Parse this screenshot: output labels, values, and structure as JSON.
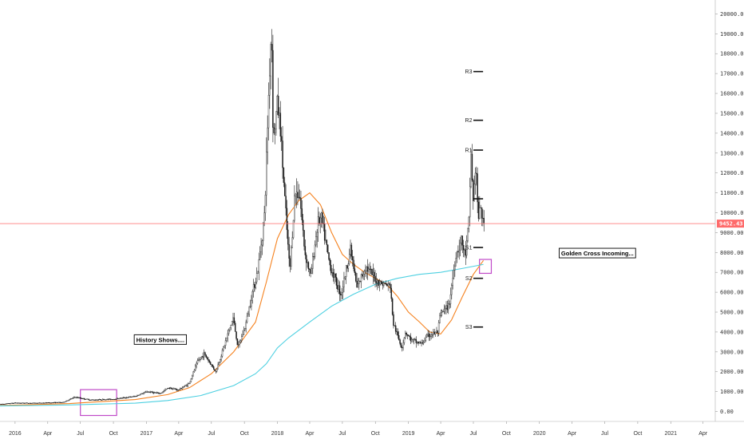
{
  "chart_data": {
    "type": "candlestick",
    "y_axis": {
      "ticks": [
        "0.00",
        "1000.00",
        "2000.00",
        "3000.00",
        "4000.00",
        "5000.00",
        "6000.00",
        "7000.00",
        "8000.00",
        "9000.00",
        "10000.00",
        "11000.00",
        "12000.00",
        "13000.00",
        "14000.00",
        "15000.00",
        "16000.00",
        "17000.00",
        "18000.00",
        "19000.00",
        "20000.00"
      ],
      "range": [
        -500,
        20700
      ],
      "position": "right"
    },
    "x_axis": {
      "ticks": [
        {
          "label": "2016",
          "date": "2016-01-01"
        },
        {
          "label": "Apr",
          "date": "2016-04-01"
        },
        {
          "label": "Jul",
          "date": "2016-07-01"
        },
        {
          "label": "Oct",
          "date": "2016-10-01"
        },
        {
          "label": "2017",
          "date": "2017-01-01"
        },
        {
          "label": "Apr",
          "date": "2017-04-01"
        },
        {
          "label": "Jul",
          "date": "2017-07-01"
        },
        {
          "label": "Oct",
          "date": "2017-10-01"
        },
        {
          "label": "2018",
          "date": "2018-01-01"
        },
        {
          "label": "Apr",
          "date": "2018-04-01"
        },
        {
          "label": "Jul",
          "date": "2018-07-01"
        },
        {
          "label": "Oct",
          "date": "2018-10-01"
        },
        {
          "label": "2019",
          "date": "2019-01-01"
        },
        {
          "label": "Apr",
          "date": "2019-04-01"
        },
        {
          "label": "Jul",
          "date": "2019-07-01"
        },
        {
          "label": "Oct",
          "date": "2019-10-01"
        },
        {
          "label": "2020",
          "date": "2020-01-01"
        },
        {
          "label": "Apr",
          "date": "2020-04-01"
        },
        {
          "label": "Jul",
          "date": "2020-07-01"
        },
        {
          "label": "Oct",
          "date": "2020-10-01"
        },
        {
          "label": "2021",
          "date": "2021-01-01"
        },
        {
          "label": "Apr",
          "date": "2021-04-01"
        }
      ],
      "range": [
        "2015-11-20",
        "2021-05-05"
      ]
    },
    "price_path": [
      [
        "2015-11-20",
        360
      ],
      [
        "2016-01-01",
        430
      ],
      [
        "2016-03-01",
        420
      ],
      [
        "2016-05-15",
        460
      ],
      [
        "2016-06-17",
        720
      ],
      [
        "2016-08-01",
        580
      ],
      [
        "2016-10-01",
        620
      ],
      [
        "2016-12-01",
        760
      ],
      [
        "2017-01-05",
        1000
      ],
      [
        "2017-02-10",
        900
      ],
      [
        "2017-03-05",
        1200
      ],
      [
        "2017-04-01",
        1080
      ],
      [
        "2017-05-01",
        1400
      ],
      [
        "2017-05-25",
        2500
      ],
      [
        "2017-06-12",
        2900
      ],
      [
        "2017-07-15",
        2000
      ],
      [
        "2017-08-05",
        3200
      ],
      [
        "2017-09-01",
        4700
      ],
      [
        "2017-09-15",
        3200
      ],
      [
        "2017-10-05",
        4300
      ],
      [
        "2017-10-25",
        6000
      ],
      [
        "2017-11-10",
        7200
      ],
      [
        "2017-11-28",
        10000
      ],
      [
        "2017-12-07",
        15000
      ],
      [
        "2017-12-17",
        19500
      ],
      [
        "2017-12-22",
        13500
      ],
      [
        "2018-01-02",
        15500
      ],
      [
        "2018-01-10",
        14500
      ],
      [
        "2018-01-20",
        11500
      ],
      [
        "2018-02-06",
        7000
      ],
      [
        "2018-02-20",
        11000
      ],
      [
        "2018-03-05",
        11000
      ],
      [
        "2018-03-20",
        8000
      ],
      [
        "2018-04-05",
        6800
      ],
      [
        "2018-04-25",
        9500
      ],
      [
        "2018-05-05",
        9700
      ],
      [
        "2018-05-28",
        7400
      ],
      [
        "2018-06-15",
        6500
      ],
      [
        "2018-06-29",
        5900
      ],
      [
        "2018-07-25",
        8200
      ],
      [
        "2018-08-12",
        6200
      ],
      [
        "2018-09-05",
        7300
      ],
      [
        "2018-10-10",
        6500
      ],
      [
        "2018-11-14",
        6300
      ],
      [
        "2018-11-20",
        4500
      ],
      [
        "2018-12-15",
        3200
      ],
      [
        "2018-12-25",
        4000
      ],
      [
        "2019-01-10",
        3600
      ],
      [
        "2019-02-08",
        3400
      ],
      [
        "2019-02-25",
        3800
      ],
      [
        "2019-03-25",
        4000
      ],
      [
        "2019-04-02",
        4900
      ],
      [
        "2019-04-25",
        5300
      ],
      [
        "2019-05-15",
        7900
      ],
      [
        "2019-05-30",
        8600
      ],
      [
        "2019-06-10",
        7800
      ],
      [
        "2019-06-20",
        9500
      ],
      [
        "2019-06-26",
        13000
      ],
      [
        "2019-07-02",
        10500
      ],
      [
        "2019-07-09",
        12500
      ],
      [
        "2019-07-17",
        9500
      ],
      [
        "2019-07-22",
        10500
      ],
      [
        "2019-07-29",
        9450
      ]
    ],
    "series": [
      {
        "color": "#f5821f",
        "points": [
          [
            "2015-11-20",
            300
          ],
          [
            "2016-06-01",
            400
          ],
          [
            "2016-12-01",
            600
          ],
          [
            "2017-03-01",
            850
          ],
          [
            "2017-05-01",
            1200
          ],
          [
            "2017-07-01",
            1900
          ],
          [
            "2017-09-01",
            3000
          ],
          [
            "2017-11-01",
            4500
          ],
          [
            "2017-12-01",
            6500
          ],
          [
            "2018-01-01",
            8700
          ],
          [
            "2018-02-01",
            9900
          ],
          [
            "2018-03-01",
            10600
          ],
          [
            "2018-04-01",
            11000
          ],
          [
            "2018-05-01",
            10400
          ],
          [
            "2018-06-01",
            9000
          ],
          [
            "2018-07-01",
            7900
          ],
          [
            "2018-08-01",
            7400
          ],
          [
            "2018-09-01",
            7000
          ],
          [
            "2018-10-01",
            6700
          ],
          [
            "2018-11-01",
            6400
          ],
          [
            "2018-12-01",
            5800
          ],
          [
            "2019-01-01",
            5000
          ],
          [
            "2019-02-01",
            4500
          ],
          [
            "2019-03-01",
            4000
          ],
          [
            "2019-04-01",
            3900
          ],
          [
            "2019-05-01",
            4600
          ],
          [
            "2019-06-01",
            5800
          ],
          [
            "2019-07-01",
            6900
          ],
          [
            "2019-07-29",
            7600
          ]
        ]
      },
      {
        "color": "#4dd0e1",
        "points": [
          [
            "2015-11-20",
            280
          ],
          [
            "2016-06-01",
            330
          ],
          [
            "2016-12-01",
            420
          ],
          [
            "2017-03-01",
            550
          ],
          [
            "2017-06-01",
            800
          ],
          [
            "2017-09-01",
            1300
          ],
          [
            "2017-11-01",
            1900
          ],
          [
            "2017-12-01",
            2400
          ],
          [
            "2018-01-01",
            3200
          ],
          [
            "2018-02-01",
            3700
          ],
          [
            "2018-04-01",
            4500
          ],
          [
            "2018-06-01",
            5300
          ],
          [
            "2018-08-01",
            5900
          ],
          [
            "2018-10-01",
            6400
          ],
          [
            "2018-12-01",
            6700
          ],
          [
            "2019-02-01",
            6900
          ],
          [
            "2019-04-01",
            7000
          ],
          [
            "2019-06-01",
            7200
          ],
          [
            "2019-07-29",
            7400
          ]
        ]
      }
    ],
    "current_price": {
      "value": 9452.43,
      "label": "9452.43",
      "color": "#ff6b6b"
    },
    "pivots": [
      {
        "label": "R3",
        "value": 17100
      },
      {
        "label": "R2",
        "value": 14650
      },
      {
        "label": "R1",
        "value": 13150
      },
      {
        "label": "",
        "value": 10700
      },
      {
        "label": "S1",
        "value": 8250
      },
      {
        "label": "S2",
        "value": 6700
      },
      {
        "label": "S3",
        "value": 4250
      }
    ],
    "pivot_range": [
      "2019-07-01",
      "2019-07-28"
    ],
    "annotations": [
      {
        "text": "History Shows....",
        "date": "2016-11-28",
        "value": 3600
      },
      {
        "text": "Golden Cross Incoming...",
        "date": "2020-02-25",
        "value": 7950
      }
    ],
    "highlight_boxes": [
      {
        "start": "2016-07-01",
        "end": "2016-10-10",
        "low": -200,
        "high": 1100,
        "color": "#c04ac8"
      },
      {
        "start": "2019-07-18",
        "end": "2019-08-20",
        "low": 6950,
        "high": 7650,
        "color": "#c04ac8"
      }
    ],
    "grid": false,
    "legend": "none"
  }
}
